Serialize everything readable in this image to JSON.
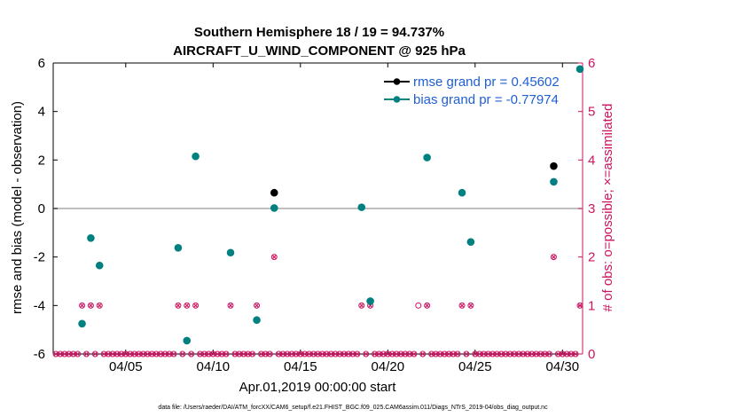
{
  "chart_data": {
    "type": "scatter",
    "title_line1": "Southern Hemisphere 18 / 19 = 94.737%",
    "title_line2": "AIRCRAFT_U_WIND_COMPONENT @ 925 hPa",
    "xlabel": "Apr.01,2019 00:00:00 start",
    "ylabel_left": "rmse and bias (model - observation)",
    "ylabel_right": "# of obs: o=possible; ×=assimilated",
    "xlim": [
      1,
      31
    ],
    "ylim_left": [
      -6,
      6
    ],
    "ylim_right": [
      0,
      6
    ],
    "x_ticks": [
      {
        "value": 5,
        "label": "04/05"
      },
      {
        "value": 10,
        "label": "04/10"
      },
      {
        "value": 15,
        "label": "04/15"
      },
      {
        "value": 20,
        "label": "04/20"
      },
      {
        "value": 25,
        "label": "04/25"
      },
      {
        "value": 30,
        "label": "04/30"
      }
    ],
    "y_ticks_left": [
      -6,
      -4,
      -2,
      0,
      2,
      4,
      6
    ],
    "y_ticks_right": [
      0,
      1,
      2,
      3,
      4,
      5,
      6
    ],
    "colors": {
      "rmse": "#000000",
      "bias": "#008080",
      "obs": "#cc1460",
      "legend_text": "#1f5fd6",
      "zero_line": "#aaaaaa"
    },
    "series": [
      {
        "name": "rmse grand pr = 0.45602",
        "color": "#000000",
        "points": [
          {
            "x": 13.5,
            "y": 0.65
          },
          {
            "x": 29.5,
            "y": 1.75
          }
        ]
      },
      {
        "name": "bias grand pr = -0.77974",
        "color": "#008080",
        "points": [
          {
            "x": 2.5,
            "y": -4.75
          },
          {
            "x": 3.0,
            "y": -1.22
          },
          {
            "x": 3.5,
            "y": -2.35
          },
          {
            "x": 8.0,
            "y": -1.62
          },
          {
            "x": 8.5,
            "y": -5.45
          },
          {
            "x": 9.0,
            "y": 2.15
          },
          {
            "x": 11.0,
            "y": -1.82
          },
          {
            "x": 12.5,
            "y": -4.6
          },
          {
            "x": 13.5,
            "y": 0.02
          },
          {
            "x": 18.5,
            "y": 0.05
          },
          {
            "x": 19.0,
            "y": -3.82
          },
          {
            "x": 22.25,
            "y": 2.1
          },
          {
            "x": 24.25,
            "y": 0.65
          },
          {
            "x": 24.75,
            "y": -1.38
          },
          {
            "x": 29.5,
            "y": 1.1
          },
          {
            "x": 31.0,
            "y": 5.75
          }
        ]
      }
    ],
    "obs_possible": [
      {
        "x": 2.5,
        "y": 1
      },
      {
        "x": 3.0,
        "y": 1
      },
      {
        "x": 3.5,
        "y": 1
      },
      {
        "x": 8.0,
        "y": 1
      },
      {
        "x": 8.5,
        "y": 1
      },
      {
        "x": 9.0,
        "y": 1
      },
      {
        "x": 11.0,
        "y": 1
      },
      {
        "x": 12.5,
        "y": 1
      },
      {
        "x": 13.5,
        "y": 2
      },
      {
        "x": 18.5,
        "y": 1
      },
      {
        "x": 19.0,
        "y": 1
      },
      {
        "x": 21.75,
        "y": 1
      },
      {
        "x": 22.25,
        "y": 1
      },
      {
        "x": 24.25,
        "y": 1
      },
      {
        "x": 24.75,
        "y": 1
      },
      {
        "x": 29.5,
        "y": 2
      },
      {
        "x": 31.0,
        "y": 1
      }
    ],
    "obs_assimilated": [
      {
        "x": 2.5,
        "y": 1
      },
      {
        "x": 3.0,
        "y": 1
      },
      {
        "x": 3.5,
        "y": 1
      },
      {
        "x": 8.0,
        "y": 1
      },
      {
        "x": 8.5,
        "y": 1
      },
      {
        "x": 9.0,
        "y": 1
      },
      {
        "x": 11.0,
        "y": 1
      },
      {
        "x": 12.5,
        "y": 1
      },
      {
        "x": 13.5,
        "y": 2
      },
      {
        "x": 18.5,
        "y": 1
      },
      {
        "x": 19.0,
        "y": 1
      },
      {
        "x": 22.25,
        "y": 1
      },
      {
        "x": 24.25,
        "y": 1
      },
      {
        "x": 24.75,
        "y": 1
      },
      {
        "x": 29.5,
        "y": 2
      },
      {
        "x": 31.0,
        "y": 1
      }
    ],
    "zero_count_step": 0.25
  },
  "footer": "data file: /Users/raeder/DAI/ATM_forcXX/CAM6_setup/f.e21.FHIST_BGC.f09_025.CAM6assim.011/Diags_NTrS_2019-04/obs_diag_output.nc"
}
